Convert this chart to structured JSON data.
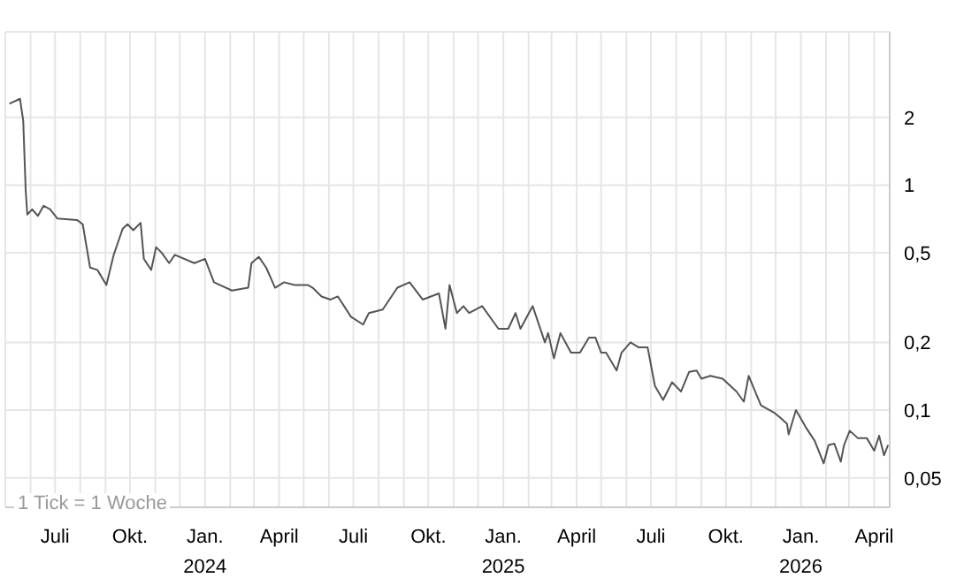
{
  "chart_data": {
    "type": "line",
    "log": "y",
    "grid": true,
    "annotations": [
      "1 Tick = 1 Woche"
    ],
    "xlim": [
      "2023-05-01",
      "2026-04-20"
    ],
    "xticks": [
      {
        "value": "2023-06-01",
        "label": null
      },
      {
        "value": "2023-07-01",
        "label": "Juli"
      },
      {
        "value": "2023-08-01",
        "label": null
      },
      {
        "value": "2023-09-01",
        "label": null
      },
      {
        "value": "2023-10-01",
        "label": "Okt."
      },
      {
        "value": "2023-11-01",
        "label": null
      },
      {
        "value": "2023-12-01",
        "label": null
      },
      {
        "value": "2024-01-01",
        "label": "Jan.\n2024"
      },
      {
        "value": "2024-02-01",
        "label": null
      },
      {
        "value": "2024-03-01",
        "label": null
      },
      {
        "value": "2024-04-01",
        "label": "April"
      },
      {
        "value": "2024-05-01",
        "label": null
      },
      {
        "value": "2024-06-01",
        "label": null
      },
      {
        "value": "2024-07-01",
        "label": "Juli"
      },
      {
        "value": "2024-08-01",
        "label": null
      },
      {
        "value": "2024-09-01",
        "label": null
      },
      {
        "value": "2024-10-01",
        "label": "Okt."
      },
      {
        "value": "2024-11-01",
        "label": null
      },
      {
        "value": "2024-12-01",
        "label": null
      },
      {
        "value": "2025-01-01",
        "label": "Jan.\n2025"
      },
      {
        "value": "2025-02-01",
        "label": null
      },
      {
        "value": "2025-03-01",
        "label": null
      },
      {
        "value": "2025-04-01",
        "label": "April"
      },
      {
        "value": "2025-05-01",
        "label": null
      },
      {
        "value": "2025-06-01",
        "label": null
      },
      {
        "value": "2025-07-01",
        "label": "Juli"
      },
      {
        "value": "2025-08-01",
        "label": null
      },
      {
        "value": "2025-09-01",
        "label": null
      },
      {
        "value": "2025-10-01",
        "label": "Okt."
      },
      {
        "value": "2025-11-01",
        "label": null
      },
      {
        "value": "2025-12-01",
        "label": null
      },
      {
        "value": "2026-01-01",
        "label": "Jan.\n2026"
      },
      {
        "value": "2026-02-01",
        "label": null
      },
      {
        "value": "2026-03-01",
        "label": null
      },
      {
        "value": "2026-04-01",
        "label": "April"
      }
    ],
    "ylim": [
      0.037,
      4.8
    ],
    "yticks": [
      {
        "value": 0.05,
        "label": "0,05"
      },
      {
        "value": 0.1,
        "label": "0,1"
      },
      {
        "value": 0.2,
        "label": "0,2"
      },
      {
        "value": 0.5,
        "label": "0,5"
      },
      1,
      2
    ],
    "x": [
      "2023-05-06",
      "2023-05-19",
      "2023-05-23",
      "2023-05-26",
      "2023-05-28",
      "2023-06-03",
      "2023-06-10",
      "2023-06-17",
      "2023-06-25",
      "2023-07-04",
      "2023-07-28",
      "2023-08-04",
      "2023-08-13",
      "2023-08-22",
      "2023-09-02",
      "2023-09-11",
      "2023-09-22",
      "2023-09-28",
      "2023-10-05",
      "2023-10-14",
      "2023-10-18",
      "2023-10-27",
      "2023-11-02",
      "2023-11-09",
      "2023-11-18",
      "2023-11-25",
      "2023-12-19",
      "2024-01-01",
      "2024-01-12",
      "2024-02-03",
      "2024-02-23",
      "2024-02-27",
      "2024-03-07",
      "2024-03-16",
      "2024-03-27",
      "2024-04-07",
      "2024-04-20",
      "2024-04-29",
      "2024-05-06",
      "2024-05-12",
      "2024-05-23",
      "2024-06-03",
      "2024-06-12",
      "2024-06-28",
      "2024-07-13",
      "2024-07-20",
      "2024-08-06",
      "2024-08-24",
      "2024-09-08",
      "2024-09-24",
      "2024-10-14",
      "2024-10-22",
      "2024-10-27",
      "2024-11-05",
      "2024-11-13",
      "2024-11-20",
      "2024-12-06",
      "2024-12-26",
      "2025-01-07",
      "2025-01-16",
      "2025-01-22",
      "2025-02-06",
      "2025-02-21",
      "2025-02-25",
      "2025-03-04",
      "2025-03-12",
      "2025-03-25",
      "2025-04-05",
      "2025-04-16",
      "2025-04-24",
      "2025-05-01",
      "2025-05-07",
      "2025-05-20",
      "2025-05-26",
      "2025-06-06",
      "2025-06-16",
      "2025-06-23",
      "2025-06-27",
      "2025-07-06",
      "2025-07-16",
      "2025-07-27",
      "2025-08-07",
      "2025-08-17",
      "2025-08-26",
      "2025-09-01",
      "2025-09-12",
      "2025-09-27",
      "2025-10-14",
      "2025-10-23",
      "2025-10-29",
      "2025-11-13",
      "2025-11-30",
      "2025-12-06",
      "2025-12-15",
      "2025-12-17",
      "2025-12-26",
      "2026-01-07",
      "2026-01-18",
      "2026-01-29",
      "2026-02-04",
      "2026-02-11",
      "2026-02-19",
      "2026-02-23",
      "2026-03-02",
      "2026-03-12",
      "2026-03-23",
      "2026-04-01",
      "2026-04-07",
      "2026-04-13",
      "2026-04-18"
    ],
    "series": [
      {
        "color": "#555555",
        "values": [
          2.3,
          2.42,
          1.93,
          0.95,
          0.74,
          0.78,
          0.73,
          0.81,
          0.78,
          0.71,
          0.7,
          0.67,
          0.43,
          0.42,
          0.36,
          0.49,
          0.64,
          0.67,
          0.63,
          0.68,
          0.47,
          0.42,
          0.53,
          0.5,
          0.45,
          0.49,
          0.45,
          0.47,
          0.37,
          0.34,
          0.35,
          0.45,
          0.48,
          0.43,
          0.35,
          0.37,
          0.36,
          0.36,
          0.36,
          0.35,
          0.32,
          0.31,
          0.32,
          0.26,
          0.24,
          0.27,
          0.28,
          0.35,
          0.37,
          0.31,
          0.33,
          0.23,
          0.36,
          0.27,
          0.29,
          0.27,
          0.29,
          0.23,
          0.23,
          0.27,
          0.23,
          0.29,
          0.2,
          0.22,
          0.17,
          0.22,
          0.18,
          0.18,
          0.21,
          0.21,
          0.18,
          0.18,
          0.15,
          0.18,
          0.2,
          0.19,
          0.19,
          0.19,
          0.128,
          0.111,
          0.133,
          0.121,
          0.148,
          0.15,
          0.138,
          0.142,
          0.138,
          0.121,
          0.109,
          0.142,
          0.105,
          0.097,
          0.093,
          0.087,
          0.078,
          0.1,
          0.084,
          0.073,
          0.058,
          0.07,
          0.071,
          0.059,
          0.07,
          0.081,
          0.075,
          0.075,
          0.066,
          0.077,
          0.063,
          0.07
        ]
      }
    ]
  }
}
